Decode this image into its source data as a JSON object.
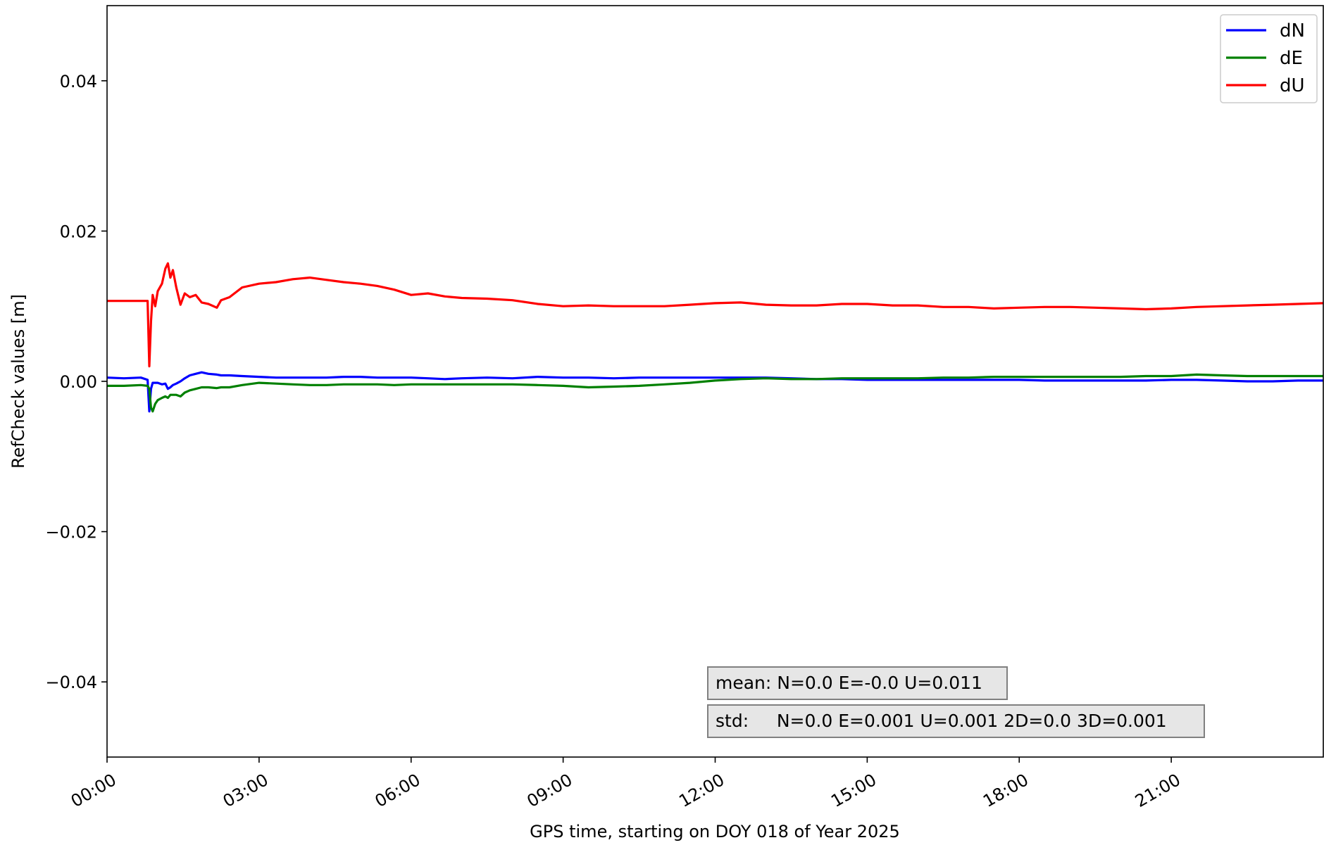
{
  "chart_data": {
    "type": "line",
    "xlabel": "GPS time, starting on DOY 018 of Year 2025",
    "ylabel": "RefCheck values [m]",
    "xlim": [
      "00:00",
      "24:00"
    ],
    "ylim": [
      -0.05,
      0.05
    ],
    "x_ticks": [
      "00:00",
      "03:00",
      "06:00",
      "09:00",
      "12:00",
      "15:00",
      "18:00",
      "21:00"
    ],
    "y_ticks": [
      0.04,
      0.02,
      0.0,
      -0.02,
      -0.04
    ],
    "y_tick_labels": [
      "0.04",
      "0.02",
      "0.00",
      "−0.02",
      "−0.04"
    ],
    "grid": false,
    "legend_position": "top-right",
    "x": [
      "00:00",
      "00:20",
      "00:40",
      "00:48",
      "00:50",
      "00:52",
      "00:54",
      "00:57",
      "01:00",
      "01:05",
      "01:09",
      "01:12",
      "01:15",
      "01:18",
      "01:22",
      "01:27",
      "01:32",
      "01:38",
      "01:45",
      "01:52",
      "02:00",
      "02:10",
      "02:15",
      "02:25",
      "02:40",
      "03:00",
      "03:20",
      "03:40",
      "04:00",
      "04:20",
      "04:40",
      "05:00",
      "05:20",
      "05:40",
      "06:00",
      "06:20",
      "06:40",
      "07:00",
      "07:30",
      "08:00",
      "08:30",
      "09:00",
      "09:30",
      "10:00",
      "10:30",
      "11:00",
      "11:30",
      "12:00",
      "12:30",
      "13:00",
      "13:30",
      "14:00",
      "14:30",
      "15:00",
      "15:30",
      "16:00",
      "16:30",
      "17:00",
      "17:30",
      "18:00",
      "18:30",
      "19:00",
      "19:30",
      "20:00",
      "20:30",
      "21:00",
      "21:30",
      "22:00",
      "22:30",
      "23:00",
      "23:30",
      "24:00"
    ],
    "series": [
      {
        "name": "dN",
        "color": "#0000ff",
        "values": [
          0.0005,
          0.0004,
          0.0005,
          0.0002,
          -0.004,
          -0.001,
          -0.0002,
          -0.0002,
          -0.0002,
          -0.0004,
          -0.0003,
          -0.001,
          -0.0008,
          -0.0005,
          -0.0003,
          0.0,
          0.0004,
          0.0008,
          0.001,
          0.0012,
          0.001,
          0.0009,
          0.0008,
          0.0008,
          0.0007,
          0.0006,
          0.0005,
          0.0005,
          0.0005,
          0.0005,
          0.0006,
          0.0006,
          0.0005,
          0.0005,
          0.0005,
          0.0004,
          0.0003,
          0.0004,
          0.0005,
          0.0004,
          0.0006,
          0.0005,
          0.0005,
          0.0004,
          0.0005,
          0.0005,
          0.0005,
          0.0005,
          0.0005,
          0.0005,
          0.0004,
          0.0003,
          0.0003,
          0.0002,
          0.0002,
          0.0002,
          0.0002,
          0.0002,
          0.0002,
          0.0002,
          0.0001,
          0.0001,
          0.0001,
          0.0001,
          0.0001,
          0.0002,
          0.0002,
          0.0001,
          0.0,
          0.0,
          0.0001,
          0.0001
        ]
      },
      {
        "name": "dE",
        "color": "#008000",
        "values": [
          -0.0006,
          -0.0006,
          -0.0005,
          -0.0006,
          -0.001,
          -0.0035,
          -0.004,
          -0.003,
          -0.0025,
          -0.0022,
          -0.002,
          -0.0022,
          -0.0018,
          -0.0018,
          -0.0018,
          -0.002,
          -0.0015,
          -0.0012,
          -0.001,
          -0.0008,
          -0.0008,
          -0.0009,
          -0.0008,
          -0.0008,
          -0.0005,
          -0.0002,
          -0.0003,
          -0.0004,
          -0.0005,
          -0.0005,
          -0.0004,
          -0.0004,
          -0.0004,
          -0.0005,
          -0.0004,
          -0.0004,
          -0.0004,
          -0.0004,
          -0.0004,
          -0.0004,
          -0.0005,
          -0.0006,
          -0.0008,
          -0.0007,
          -0.0006,
          -0.0004,
          -0.0002,
          0.0001,
          0.0003,
          0.0004,
          0.0003,
          0.0003,
          0.0004,
          0.0004,
          0.0004,
          0.0004,
          0.0005,
          0.0005,
          0.0006,
          0.0006,
          0.0006,
          0.0006,
          0.0006,
          0.0006,
          0.0007,
          0.0007,
          0.0009,
          0.0008,
          0.0007,
          0.0007,
          0.0007,
          0.0007
        ]
      },
      {
        "name": "dU",
        "color": "#ff0000",
        "values": [
          0.0107,
          0.0107,
          0.0107,
          0.0107,
          0.002,
          0.008,
          0.0115,
          0.01,
          0.012,
          0.013,
          0.015,
          0.0157,
          0.0138,
          0.0148,
          0.0125,
          0.0102,
          0.0117,
          0.0112,
          0.0115,
          0.0105,
          0.0103,
          0.0098,
          0.0108,
          0.0112,
          0.0125,
          0.013,
          0.0132,
          0.0136,
          0.0138,
          0.0135,
          0.0132,
          0.013,
          0.0127,
          0.0122,
          0.0115,
          0.0117,
          0.0113,
          0.0111,
          0.011,
          0.0108,
          0.0103,
          0.01,
          0.0101,
          0.01,
          0.01,
          0.01,
          0.0102,
          0.0104,
          0.0105,
          0.0102,
          0.0101,
          0.0101,
          0.0103,
          0.0103,
          0.0101,
          0.0101,
          0.0099,
          0.0099,
          0.0097,
          0.0098,
          0.0099,
          0.0099,
          0.0098,
          0.0097,
          0.0096,
          0.0097,
          0.0099,
          0.01,
          0.0101,
          0.0102,
          0.0103,
          0.0104
        ]
      }
    ],
    "annotations": [
      {
        "text": "mean: N=0.0 E=-0.0 U=0.011"
      },
      {
        "text": "std:     N=0.0 E=0.001 U=0.001 2D=0.0 3D=0.001"
      }
    ]
  }
}
